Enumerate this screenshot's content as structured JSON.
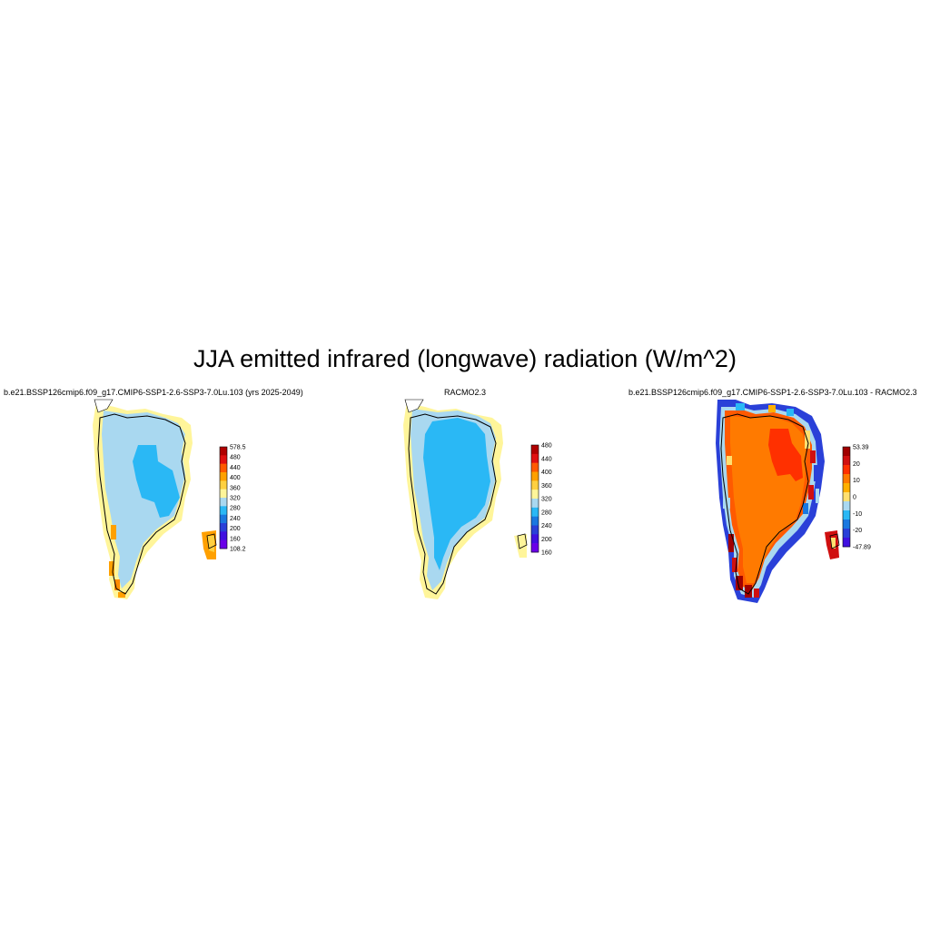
{
  "figure": {
    "title": "JJA emitted infrared (longwave) radiation (W/m^2)"
  },
  "panels": [
    {
      "title": "b.e21.BSSP126cmip6.f09_g17.CMIP6-SSP1-2.6-SSP3-7.0Lu.103 (yrs 2025-2049)",
      "colorbar": {
        "labels": [
          "578.5",
          "480",
          "440",
          "400",
          "360",
          "320",
          "280",
          "240",
          "200",
          "160",
          "108.2"
        ],
        "colors": [
          "#b00000",
          "#e01010",
          "#ff5a00",
          "#ffa000",
          "#ffd040",
          "#fff59a",
          "#a9d8f0",
          "#2ab8f5",
          "#1a78e0",
          "#2a40d8",
          "#4010e0",
          "#6a00e8"
        ]
      }
    },
    {
      "title": "RACMO2.3",
      "colorbar": {
        "labels": [
          "480",
          "440",
          "400",
          "360",
          "320",
          "280",
          "240",
          "200",
          "160"
        ],
        "colors": [
          "#b00000",
          "#e01010",
          "#ff5a00",
          "#ffa000",
          "#ffd040",
          "#fff59a",
          "#a9d8f0",
          "#2ab8f5",
          "#1a78e0",
          "#2a40d8",
          "#4010e0",
          "#6a00e8"
        ]
      }
    },
    {
      "title": "b.e21.BSSP126cmip6.f09_g17.CMIP6-SSP1-2.6-SSP3-7.0Lu.103 - RACMO2.3",
      "colorbar": {
        "labels": [
          "53.39",
          "20",
          "10",
          "0",
          "-10",
          "-20",
          "-47.89"
        ],
        "colors": [
          "#a00000",
          "#d01010",
          "#ff3000",
          "#ff7a00",
          "#ffb000",
          "#ffe070",
          "#a9d8f0",
          "#2ab8f5",
          "#1a78e0",
          "#2a40d8",
          "#4010e0"
        ]
      }
    }
  ]
}
